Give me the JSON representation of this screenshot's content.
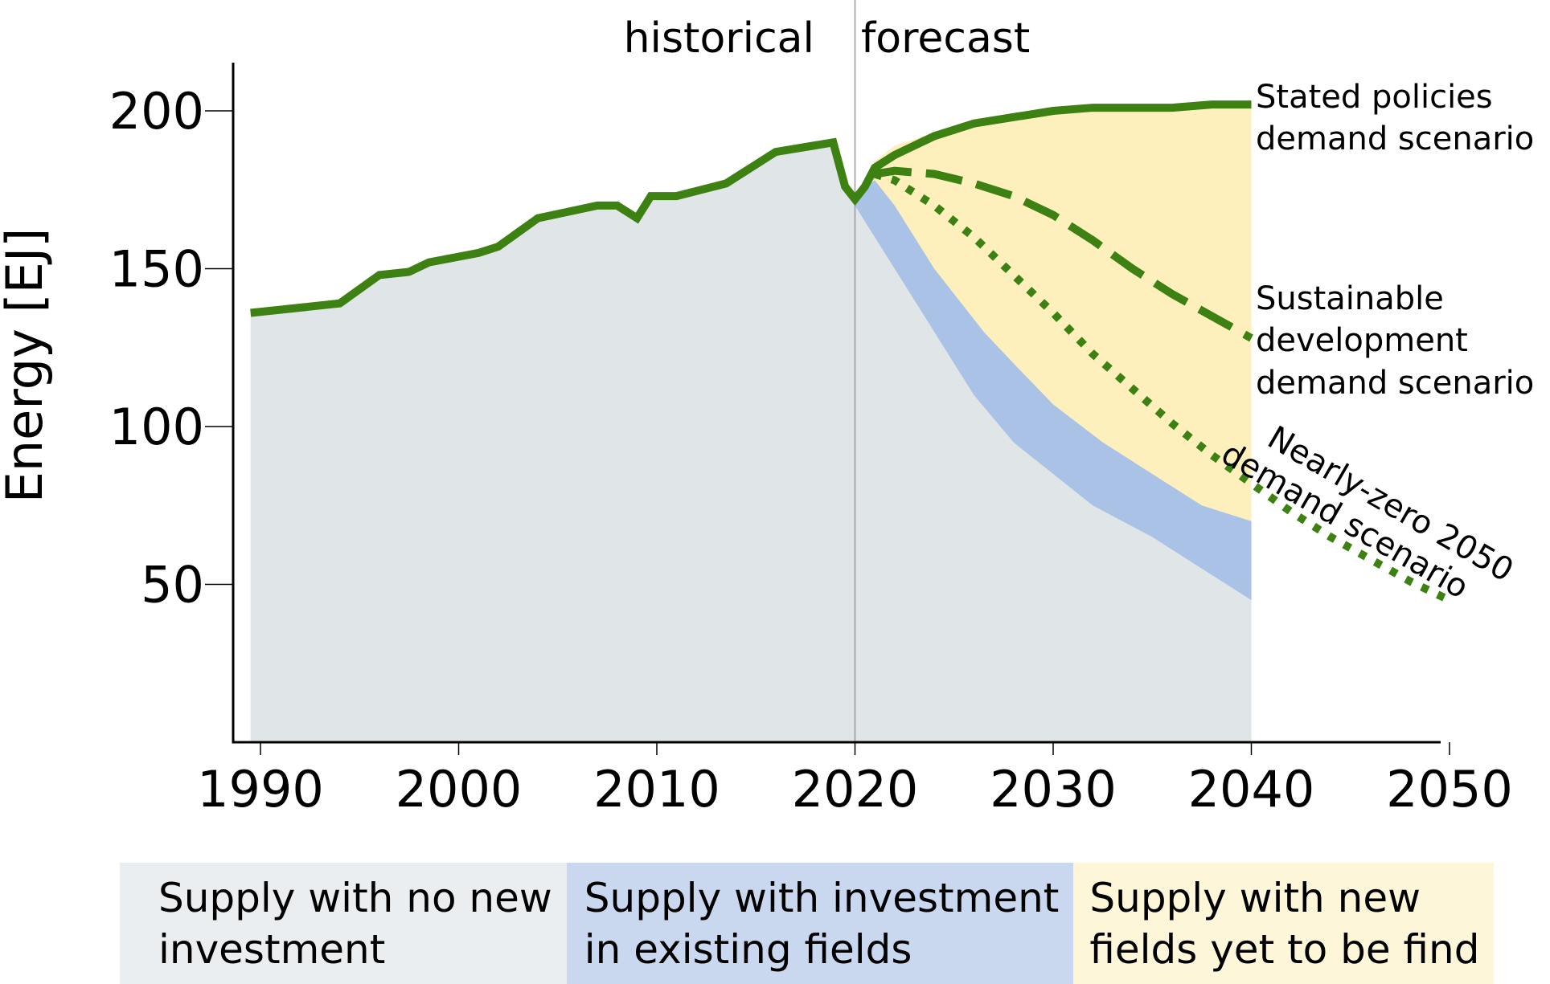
{
  "chart_data": {
    "type": "area",
    "ylabel": "Energy [EJ]",
    "xlabel": "",
    "xlim": [
      1988.5,
      2053
    ],
    "ylim": [
      0,
      217
    ],
    "x_ticks": [
      "1990",
      "2000",
      "2010",
      "2020",
      "2030",
      "2040",
      "2050"
    ],
    "y_ticks": [
      "50",
      "100",
      "150",
      "200"
    ],
    "period_labels": {
      "historical": "historical",
      "forecast": "forecast",
      "divider_year": 2020
    },
    "colors": {
      "no_new_investment": "#e0e5e8",
      "existing_fields": "#a9c2e6",
      "new_fields": "#fdf0bd",
      "scenario_line": "#3e8113",
      "divider": "#999999"
    },
    "areas": [
      {
        "name": "Supply with no new investment",
        "x": [
          1989.5,
          1994,
          1996,
          1997.5,
          1998.5,
          2001,
          2002,
          2004,
          2007,
          2008,
          2009,
          2009.7,
          2011,
          2013.5,
          2016,
          2018.9,
          2019.5,
          2020,
          2021,
          2022,
          2024,
          2026,
          2028,
          2030,
          2032,
          2035,
          2037.5,
          2040
        ],
        "y": [
          136,
          139,
          148,
          149,
          152,
          155,
          157,
          166,
          170,
          170,
          166,
          173,
          173,
          177,
          187,
          190,
          176,
          170,
          160,
          150,
          130,
          110,
          95,
          85,
          75,
          65,
          55,
          45
        ]
      },
      {
        "name": "Supply with investment in existing fields",
        "x": [
          2019.5,
          2020,
          2020.5,
          2021,
          2022,
          2023,
          2024,
          2025,
          2026.5,
          2028,
          2030,
          2032.5,
          2035,
          2037.5,
          2040
        ],
        "y": [
          176,
          172,
          176,
          178,
          170,
          160,
          150,
          142,
          130,
          120,
          107,
          95,
          85,
          75,
          70
        ]
      },
      {
        "name": "Supply with new fields yet to be find",
        "x": [
          2020.5,
          2021,
          2022,
          2024,
          2026,
          2028,
          2030,
          2032,
          2034,
          2036,
          2038,
          2040
        ],
        "y": [
          178,
          184,
          189,
          193,
          196,
          198,
          200,
          201,
          201,
          201,
          202,
          202
        ]
      }
    ],
    "series": [
      {
        "name": "Stated policies demand scenario",
        "style": "solid",
        "x": [
          1989.5,
          1994,
          1996,
          1997.5,
          1998.5,
          2001,
          2002,
          2004,
          2007,
          2008,
          2009,
          2009.7,
          2011,
          2013.5,
          2016,
          2018.9,
          2019.5,
          2020,
          2020.5,
          2021,
          2022,
          2024,
          2026,
          2028,
          2030,
          2032,
          2034,
          2036,
          2038,
          2040
        ],
        "y": [
          136,
          139,
          148,
          149,
          152,
          155,
          157,
          166,
          170,
          170,
          166,
          173,
          173,
          177,
          187,
          190,
          176,
          172,
          176,
          182,
          186,
          192,
          196,
          198,
          200,
          201,
          201,
          201,
          202,
          202
        ]
      },
      {
        "name": "Sustainable development demand scenario",
        "style": "dashed",
        "x": [
          2021,
          2022,
          2024,
          2026,
          2028,
          2030,
          2032,
          2034,
          2036,
          2038,
          2040
        ],
        "y": [
          180,
          181,
          180,
          177,
          173,
          167,
          159,
          150,
          142,
          135,
          128
        ]
      },
      {
        "name": "Nearly-zero 2050 demand scenario",
        "style": "dotted",
        "x": [
          2021,
          2022,
          2024,
          2026,
          2028,
          2030,
          2032,
          2034,
          2036,
          2038,
          2040,
          2042,
          2044,
          2046,
          2048,
          2050
        ],
        "y": [
          180,
          178,
          170,
          160,
          148,
          136,
          123,
          112,
          101,
          91,
          82,
          73,
          65,
          58,
          51,
          45
        ]
      }
    ],
    "scenario_labels": [
      {
        "lines": [
          "Stated policies",
          "demand scenario"
        ]
      },
      {
        "lines": [
          "Sustainable",
          "development",
          "demand scenario"
        ]
      },
      {
        "lines": [
          "Nearly-zero 2050",
          "demand scenario"
        ]
      }
    ]
  },
  "legend": [
    {
      "lines": [
        "Supply with no new",
        "investment"
      ],
      "color": "#ebeef0"
    },
    {
      "lines": [
        "Supply with investment",
        "in existing fields"
      ],
      "color": "#c9d8ef"
    },
    {
      "lines": [
        "Supply with new",
        "fields yet to be find"
      ],
      "color": "#fef6d8"
    }
  ]
}
